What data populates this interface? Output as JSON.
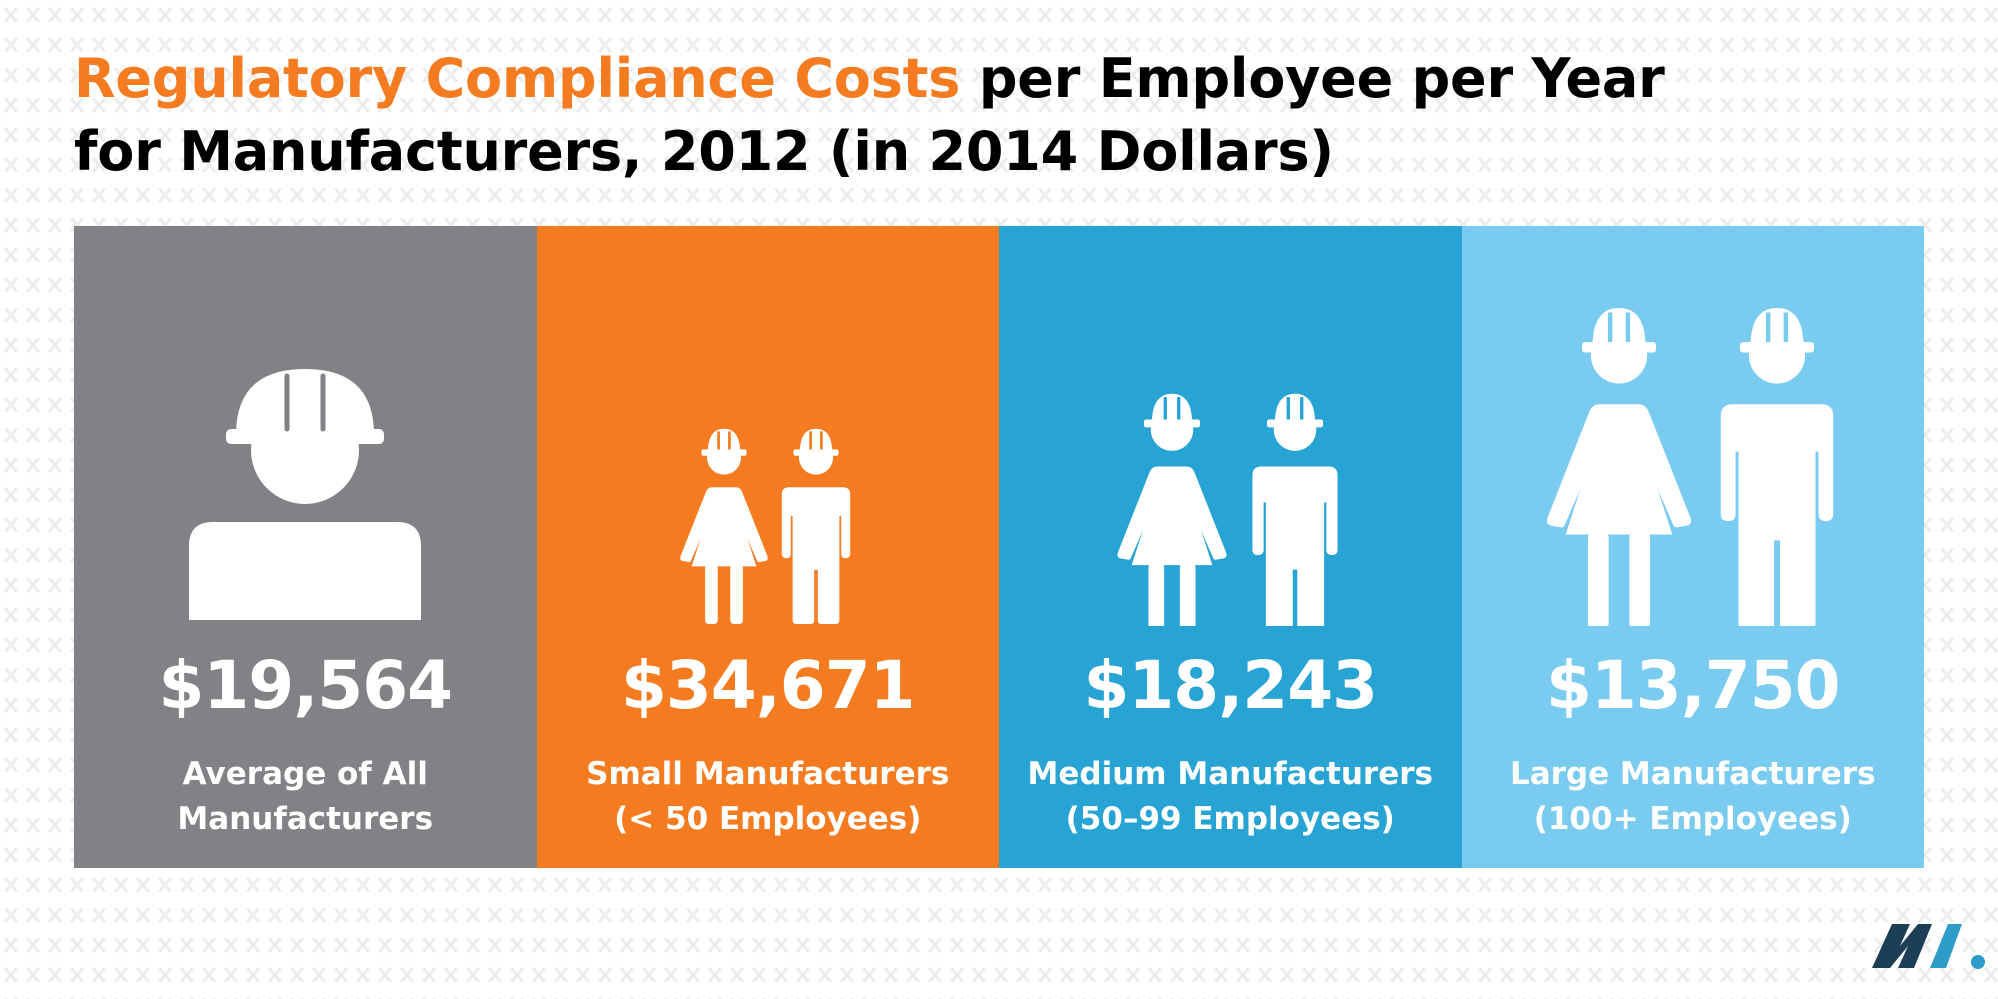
{
  "title": {
    "highlight": "Regulatory Compliance Costs",
    "rest_line1": " per Employee per Year",
    "line2": "for Manufacturers, 2012 (in 2014 Dollars)"
  },
  "colors": {
    "accent_orange": "#f47b20",
    "panel_gray": "#808285",
    "panel_orange": "#f47b20",
    "panel_blue": "#27a4d4",
    "panel_light_blue": "#79cbf0",
    "logo_navy": "#1c3f56",
    "logo_teal": "#2d9cc8",
    "pattern": "#ececec"
  },
  "panels": [
    {
      "value": "$19,564",
      "label_line1": "Average of All",
      "label_line2": "Manufacturers",
      "icon": "worker-bust-icon"
    },
    {
      "value": "$34,671",
      "label_line1": "Small Manufacturers",
      "label_line2": "(< 50 Employees)",
      "icon": "small-workers-icon"
    },
    {
      "value": "$18,243",
      "label_line1": "Medium Manufacturers",
      "label_line2": "(50–99 Employees)",
      "icon": "medium-workers-icon"
    },
    {
      "value": "$13,750",
      "label_line1": "Large Manufacturers",
      "label_line2": "(100+ Employees)",
      "icon": "large-workers-icon"
    }
  ],
  "logo": {
    "icon": "nam-logo-icon"
  }
}
